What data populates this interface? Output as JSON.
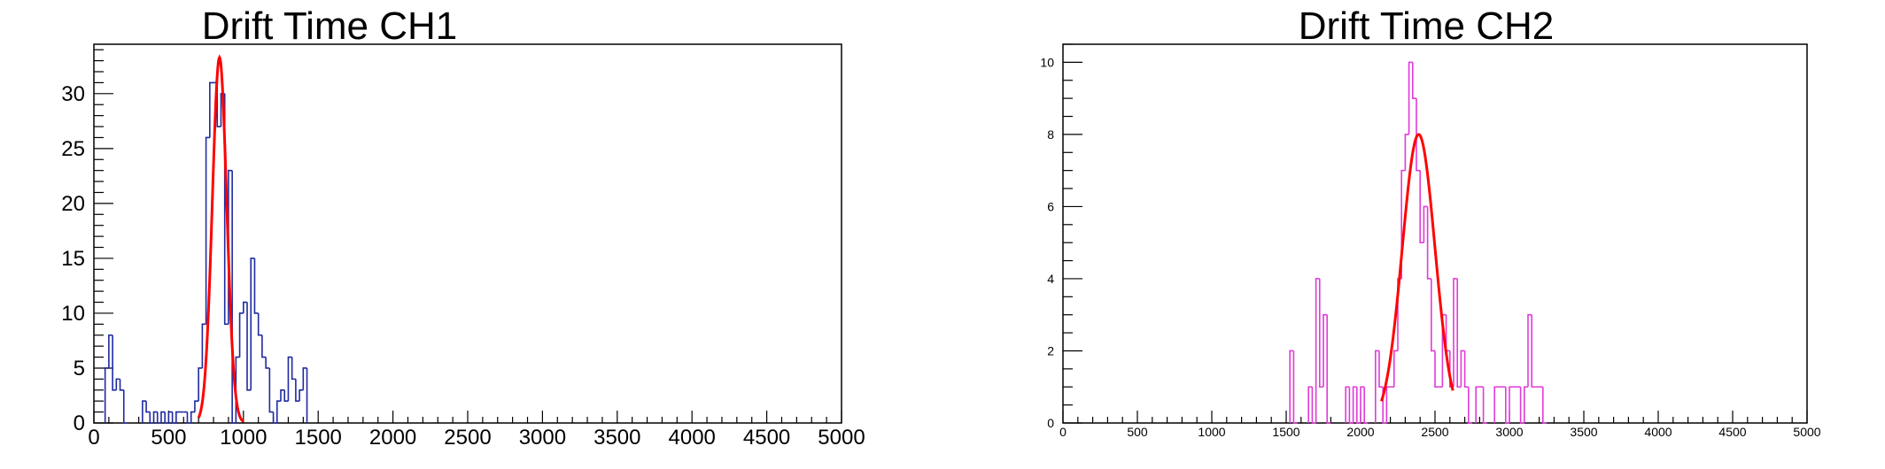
{
  "colors": {
    "ch1_hist": "#1f2aa0",
    "ch2_hist": "#e03bd8",
    "fit": "#ff0000",
    "frame": "#000000"
  },
  "chart_data": [
    {
      "type": "histogram",
      "title": "Drift Time CH1",
      "xlabel": "",
      "ylabel": "",
      "xlim": [
        0,
        5000
      ],
      "ylim": [
        0,
        34.5
      ],
      "x_ticks": [
        "0",
        "500",
        "1000",
        "1500",
        "2000",
        "2500",
        "3000",
        "3500",
        "4000",
        "4500",
        "5000"
      ],
      "y_ticks": [
        "0",
        "5",
        "10",
        "15",
        "20",
        "25",
        "30"
      ],
      "bin_width": 25,
      "bins": [
        [
          75,
          5
        ],
        [
          100,
          8
        ],
        [
          125,
          3
        ],
        [
          150,
          4
        ],
        [
          175,
          3
        ],
        [
          200,
          0
        ],
        [
          325,
          2
        ],
        [
          350,
          1
        ],
        [
          375,
          0
        ],
        [
          400,
          1
        ],
        [
          425,
          0
        ],
        [
          450,
          1
        ],
        [
          475,
          0
        ],
        [
          500,
          1
        ],
        [
          525,
          0
        ],
        [
          550,
          1
        ],
        [
          575,
          1
        ],
        [
          600,
          1
        ],
        [
          625,
          0
        ],
        [
          650,
          1
        ],
        [
          675,
          2
        ],
        [
          700,
          5
        ],
        [
          725,
          9
        ],
        [
          750,
          26
        ],
        [
          775,
          31
        ],
        [
          800,
          31
        ],
        [
          825,
          27
        ],
        [
          850,
          30
        ],
        [
          875,
          9
        ],
        [
          900,
          23
        ],
        [
          925,
          0
        ],
        [
          950,
          6
        ],
        [
          975,
          10
        ],
        [
          1000,
          11
        ],
        [
          1025,
          3
        ],
        [
          1050,
          15
        ],
        [
          1075,
          10
        ],
        [
          1100,
          8
        ],
        [
          1125,
          6
        ],
        [
          1150,
          5
        ],
        [
          1175,
          1
        ],
        [
          1200,
          0
        ],
        [
          1225,
          2
        ],
        [
          1250,
          3
        ],
        [
          1275,
          2
        ],
        [
          1300,
          6
        ],
        [
          1325,
          4
        ],
        [
          1350,
          2
        ],
        [
          1375,
          3
        ],
        [
          1400,
          5
        ]
      ],
      "fit": {
        "function": "gaus",
        "constant": 33.3,
        "mean": 840,
        "sigma": 48,
        "range": [
          700,
          1000
        ]
      }
    },
    {
      "type": "histogram",
      "title": "Drift Time CH2",
      "xlabel": "",
      "ylabel": "",
      "xlim": [
        0,
        5000
      ],
      "ylim": [
        0,
        10.5
      ],
      "x_ticks": [
        "0",
        "500",
        "1000",
        "1500",
        "2000",
        "2500",
        "3000",
        "3500",
        "4000",
        "4500",
        "5000"
      ],
      "y_ticks": [
        "0",
        "2",
        "4",
        "6",
        "8",
        "10"
      ],
      "bin_width": 25,
      "bins": [
        [
          1525,
          2
        ],
        [
          1550,
          0
        ],
        [
          1650,
          1
        ],
        [
          1675,
          0
        ],
        [
          1700,
          4
        ],
        [
          1725,
          1
        ],
        [
          1750,
          3
        ],
        [
          1775,
          0
        ],
        [
          1900,
          1
        ],
        [
          1925,
          0
        ],
        [
          1950,
          1
        ],
        [
          1975,
          0
        ],
        [
          2000,
          1
        ],
        [
          2025,
          0
        ],
        [
          2100,
          2
        ],
        [
          2125,
          1
        ],
        [
          2150,
          0
        ],
        [
          2175,
          1
        ],
        [
          2200,
          1
        ],
        [
          2225,
          2
        ],
        [
          2250,
          4
        ],
        [
          2275,
          7
        ],
        [
          2300,
          8
        ],
        [
          2325,
          10
        ],
        [
          2350,
          9
        ],
        [
          2375,
          7
        ],
        [
          2400,
          5
        ],
        [
          2425,
          6
        ],
        [
          2450,
          4
        ],
        [
          2475,
          2
        ],
        [
          2500,
          1
        ],
        [
          2525,
          1
        ],
        [
          2550,
          3
        ],
        [
          2575,
          2
        ],
        [
          2600,
          1
        ],
        [
          2625,
          4
        ],
        [
          2650,
          1
        ],
        [
          2675,
          2
        ],
        [
          2700,
          1
        ],
        [
          2725,
          0
        ],
        [
          2775,
          1
        ],
        [
          2800,
          1
        ],
        [
          2825,
          0
        ],
        [
          2900,
          1
        ],
        [
          2925,
          1
        ],
        [
          2950,
          1
        ],
        [
          2975,
          0
        ],
        [
          3000,
          1
        ],
        [
          3025,
          1
        ],
        [
          3050,
          1
        ],
        [
          3075,
          0
        ],
        [
          3100,
          1
        ],
        [
          3125,
          3
        ],
        [
          3150,
          1
        ],
        [
          3175,
          1
        ],
        [
          3200,
          1
        ],
        [
          3225,
          0
        ]
      ],
      "fit": {
        "function": "gaus",
        "constant": 8.0,
        "mean": 2390,
        "sigma": 110,
        "range": [
          2140,
          2620
        ]
      }
    }
  ]
}
